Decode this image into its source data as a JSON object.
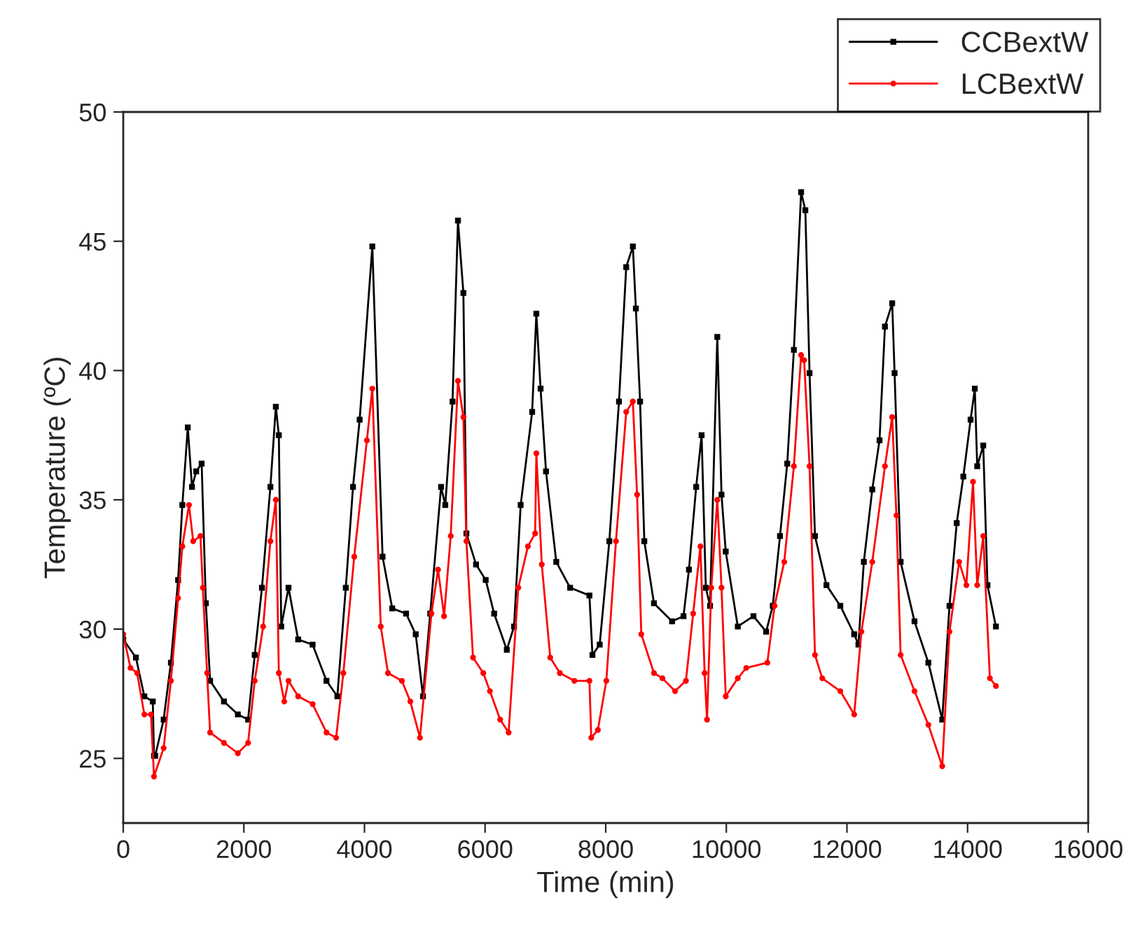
{
  "chart_data": {
    "type": "line",
    "xlabel": "Time (min)",
    "ylabel": "Temperature (ºC)",
    "xlim": [
      0,
      16000
    ],
    "xticks": [
      0,
      2000,
      4000,
      6000,
      8000,
      10000,
      12000,
      14000,
      16000
    ],
    "ylim": [
      22.5,
      50
    ],
    "yticks": [
      25,
      30,
      35,
      40,
      45,
      50
    ],
    "grid": false,
    "legend": "top right",
    "line_style": "solid",
    "series": [
      {
        "name": "CCBextW",
        "color": "#000000",
        "marker": "square",
        "x": [
          0,
          210,
          350,
          490,
          510,
          530,
          670,
          790,
          910,
          980,
          1070,
          1140,
          1210,
          1300,
          1370,
          1440,
          1670,
          1900,
          2070,
          2180,
          2300,
          2440,
          2530,
          2580,
          2620,
          2740,
          2900,
          3140,
          3370,
          3550,
          3690,
          3810,
          3920,
          4130,
          4300,
          4460,
          4690,
          4850,
          4970,
          5090,
          5270,
          5340,
          5460,
          5550,
          5640,
          5690,
          5850,
          6010,
          6150,
          6360,
          6480,
          6590,
          6780,
          6850,
          6920,
          7010,
          7180,
          7410,
          7730,
          7780,
          7900,
          8060,
          8220,
          8340,
          8450,
          8500,
          8570,
          8640,
          8800,
          9100,
          9290,
          9380,
          9500,
          9590,
          9660,
          9730,
          9850,
          9920,
          9990,
          10190,
          10450,
          10660,
          10770,
          10890,
          11010,
          11120,
          11240,
          11310,
          11380,
          11470,
          11660,
          11890,
          12120,
          12190,
          12280,
          12420,
          12540,
          12630,
          12750,
          12790,
          12890,
          13120,
          13350,
          13580,
          13700,
          13820,
          13930,
          14050,
          14120,
          14160,
          14260,
          14330,
          14470
        ],
        "values": [
          29.6,
          28.9,
          27.4,
          27.2,
          25.1,
          25.1,
          26.5,
          28.7,
          31.9,
          34.8,
          37.8,
          35.5,
          36.1,
          36.4,
          31.0,
          28.0,
          27.2,
          26.7,
          26.5,
          29.0,
          31.6,
          35.5,
          38.6,
          37.5,
          30.1,
          31.6,
          29.6,
          29.4,
          28.0,
          27.4,
          31.6,
          35.5,
          38.1,
          44.8,
          32.8,
          30.8,
          30.6,
          29.8,
          27.4,
          30.6,
          35.5,
          34.8,
          38.8,
          45.8,
          43.0,
          33.7,
          32.5,
          31.9,
          30.6,
          29.2,
          30.1,
          34.8,
          38.4,
          42.2,
          39.3,
          36.1,
          32.6,
          31.6,
          31.3,
          29.0,
          29.4,
          33.4,
          38.8,
          44.0,
          44.8,
          42.4,
          38.8,
          33.4,
          31.0,
          30.3,
          30.5,
          32.3,
          35.5,
          37.5,
          31.6,
          30.9,
          41.3,
          35.2,
          33.0,
          30.1,
          30.5,
          29.9,
          30.9,
          33.6,
          36.4,
          40.8,
          46.9,
          46.2,
          39.9,
          33.6,
          31.7,
          30.9,
          29.8,
          29.4,
          32.6,
          35.4,
          37.3,
          41.7,
          42.6,
          39.9,
          32.6,
          30.3,
          28.7,
          26.5,
          30.9,
          34.1,
          35.9,
          38.1,
          39.3,
          36.3,
          37.1,
          31.7,
          30.1
        ]
      },
      {
        "name": "LCBextW",
        "color": "#ff0000",
        "marker": "circle",
        "x": [
          0,
          120,
          230,
          350,
          460,
          510,
          670,
          790,
          910,
          980,
          1090,
          1160,
          1280,
          1320,
          1390,
          1440,
          1670,
          1900,
          2070,
          2180,
          2320,
          2440,
          2530,
          2580,
          2670,
          2740,
          2900,
          3140,
          3370,
          3530,
          3650,
          3830,
          4040,
          4130,
          4270,
          4390,
          4620,
          4760,
          4920,
          5110,
          5220,
          5320,
          5430,
          5550,
          5640,
          5690,
          5800,
          5970,
          6080,
          6250,
          6390,
          6550,
          6710,
          6830,
          6850,
          6940,
          7080,
          7240,
          7480,
          7730,
          7760,
          7870,
          8010,
          8170,
          8340,
          8450,
          8520,
          8590,
          8800,
          8940,
          9150,
          9330,
          9450,
          9570,
          9640,
          9680,
          9750,
          9850,
          9920,
          9990,
          10190,
          10330,
          10680,
          10800,
          10960,
          11120,
          11240,
          11290,
          11380,
          11470,
          11590,
          11890,
          12120,
          12240,
          12420,
          12630,
          12750,
          12820,
          12890,
          13120,
          13350,
          13580,
          13700,
          13860,
          13980,
          14090,
          14160,
          14260,
          14370,
          14470
        ],
        "values": [
          29.8,
          28.5,
          28.3,
          26.7,
          26.7,
          24.3,
          25.4,
          28.0,
          31.2,
          33.2,
          34.8,
          33.4,
          33.6,
          31.6,
          28.3,
          26.0,
          25.6,
          25.2,
          25.6,
          28.0,
          30.1,
          33.4,
          35.0,
          28.3,
          27.2,
          28.0,
          27.4,
          27.1,
          26.0,
          25.8,
          28.3,
          32.8,
          37.3,
          39.3,
          30.1,
          28.3,
          28.0,
          27.2,
          25.8,
          30.6,
          32.3,
          30.5,
          33.6,
          39.6,
          38.2,
          33.4,
          28.9,
          28.3,
          27.6,
          26.5,
          26.0,
          31.6,
          33.2,
          33.7,
          36.8,
          32.5,
          28.9,
          28.3,
          28.0,
          28.0,
          25.8,
          26.1,
          28.0,
          33.4,
          38.4,
          38.8,
          35.2,
          29.8,
          28.3,
          28.1,
          27.6,
          28.0,
          30.6,
          33.2,
          28.3,
          26.5,
          31.6,
          35.0,
          31.6,
          27.4,
          28.1,
          28.5,
          28.7,
          30.9,
          32.6,
          36.3,
          40.6,
          40.4,
          36.3,
          29.0,
          28.1,
          27.6,
          26.7,
          29.9,
          32.6,
          36.3,
          38.2,
          34.4,
          29.0,
          27.6,
          26.3,
          24.7,
          29.9,
          32.6,
          31.7,
          35.7,
          31.7,
          33.6,
          28.1,
          27.8
        ]
      }
    ]
  }
}
